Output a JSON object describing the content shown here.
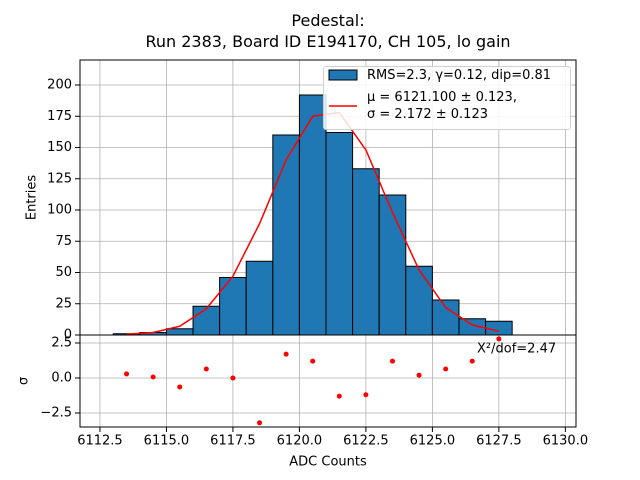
{
  "chart_data": [
    {
      "type": "histogram",
      "title": "Pedestal:\nRun 2383, Board ID E194170, CH 105, lo gain",
      "ylabel": "Entries",
      "xlim": [
        6111.75,
        6130.4
      ],
      "ylim": [
        0,
        220
      ],
      "yticks": [
        0,
        25,
        50,
        75,
        100,
        125,
        150,
        175,
        200
      ],
      "grid": true,
      "legend": "upper right",
      "bins": [
        6113,
        6114,
        6115,
        6116,
        6117,
        6118,
        6119,
        6120,
        6121,
        6122,
        6123,
        6124,
        6125,
        6126,
        6127,
        6128
      ],
      "series": [
        {
          "name": "RMS=2.3, γ=0.12, dip=0.81",
          "color": "#1f77b4",
          "values": [
            1,
            2,
            5,
            23,
            46,
            59,
            160,
            192,
            162,
            133,
            112,
            55,
            28,
            13,
            11
          ]
        },
        {
          "name": "μ = 6121.100 ± 0.123,\nσ = 2.172 ± 0.123",
          "color": "#ff0000",
          "type": "line",
          "x": [
            6113.5,
            6114.5,
            6115.5,
            6116.5,
            6117.5,
            6118.5,
            6119.5,
            6120.5,
            6121.5,
            6122.5,
            6123.5,
            6124.5,
            6125.5,
            6126.5,
            6127.5
          ],
          "values": [
            0.7,
            2,
            7,
            21,
            47,
            89,
            140,
            175,
            178,
            148,
            98,
            52,
            22,
            8,
            3
          ]
        }
      ]
    },
    {
      "type": "scatter",
      "xlabel": "ADC Counts",
      "ylabel": "σ",
      "annotation": "X²/dof=2.47",
      "xlim": [
        6111.75,
        6130.4
      ],
      "ylim": [
        -3.5,
        3.07
      ],
      "xticks": [
        6112.5,
        {
          "value": 6115,
          "label": "6115.0"
        },
        6117.5,
        {
          "value": 6120,
          "label": "6120.0"
        },
        6122.5,
        {
          "value": 6125,
          "label": "6125.0"
        },
        6127.5,
        {
          "value": 6130,
          "label": "6130.0"
        }
      ],
      "yticks": [
        {
          "value": -2.5,
          "label": "−2.5"
        },
        {
          "value": 0,
          "label": "0.0"
        },
        2.5
      ],
      "grid": true,
      "color": "#ff0000",
      "x": [
        6113.5,
        6114.5,
        6115.5,
        6116.5,
        6117.5,
        6118.5,
        6119.5,
        6120.5,
        6121.5,
        6122.5,
        6123.5,
        6124.5,
        6125.5,
        6126.5,
        6127.5
      ],
      "values": [
        0.29,
        0.07,
        -0.64,
        0.64,
        0,
        -3.2,
        1.7,
        1.2,
        -1.3,
        -1.2,
        1.2,
        0.2,
        0.64,
        1.2,
        2.79
      ]
    }
  ]
}
